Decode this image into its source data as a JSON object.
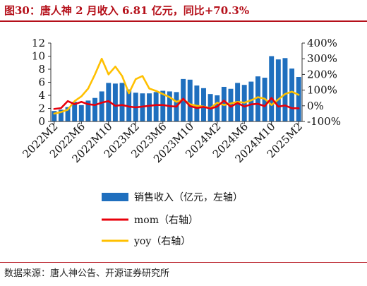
{
  "title": "图30：唐人神 2 月收入 6.81 亿元，同比+70.3%",
  "source": "数据来源：唐人神公告、开源证券研究所",
  "colors": {
    "bar": "#1f6fbe",
    "mom": "#e8000b",
    "yoy": "#ffc000",
    "title": "#b5101a"
  },
  "chart_data": {
    "type": "bar",
    "categories": [
      "2022M2",
      "2022M3",
      "2022M4",
      "2022M5",
      "2022M6",
      "2022M7",
      "2022M8",
      "2022M9",
      "2022M10",
      "2022M11",
      "2022M12",
      "2023M1",
      "2023M2",
      "2023M3",
      "2023M4",
      "2023M5",
      "2023M6",
      "2023M7",
      "2023M8",
      "2023M9",
      "2023M10",
      "2023M11",
      "2023M12",
      "2024M1",
      "2024M2",
      "2024M3",
      "2024M4",
      "2024M5",
      "2024M6",
      "2024M7",
      "2024M8",
      "2024M9",
      "2024M10",
      "2024M11",
      "2024M12",
      "2025M1",
      "2025M2"
    ],
    "x_tick_labels": [
      "2022M2",
      "2022M6",
      "2022M10",
      "2023M2",
      "2023M6",
      "2023M10",
      "2024M2",
      "2024M6",
      "2024M10",
      "2025M2"
    ],
    "series": [
      {
        "name": "销售收入（亿元，左轴）",
        "type": "bar",
        "axis": "left",
        "values": [
          1.6,
          1.8,
          2.2,
          3.0,
          2.5,
          3.2,
          3.6,
          4.6,
          5.9,
          5.8,
          5.9,
          4.9,
          4.4,
          4.3,
          4.3,
          4.5,
          4.7,
          4.6,
          4.5,
          6.5,
          6.4,
          5.5,
          5.1,
          4.2,
          4.0,
          5.3,
          5.0,
          5.9,
          5.6,
          6.1,
          6.9,
          6.7,
          10.0,
          9.5,
          9.7,
          8.1,
          6.81
        ]
      },
      {
        "name": "mom（右轴）",
        "type": "line",
        "axis": "right",
        "values": [
          -20,
          -15,
          30,
          10,
          25,
          10,
          5,
          20,
          30,
          0,
          5,
          -5,
          -10,
          -5,
          0,
          5,
          5,
          -2,
          -5,
          45,
          -2,
          -14,
          -7,
          -18,
          -5,
          33,
          -6,
          18,
          -5,
          9,
          13,
          -3,
          50,
          -5,
          2,
          -16,
          -16
        ]
      },
      {
        "name": "yoy（右轴）",
        "type": "line",
        "axis": "right",
        "values": [
          -50,
          -40,
          -25,
          30,
          60,
          110,
          200,
          300,
          200,
          250,
          190,
          80,
          170,
          190,
          110,
          95,
          75,
          55,
          25,
          40,
          10,
          0,
          -5,
          -15,
          20,
          5,
          15,
          25,
          20,
          35,
          55,
          45,
          5,
          40,
          75,
          90,
          70
        ]
      }
    ],
    "ylim_left": [
      0,
      12
    ],
    "yticks_left": [
      0,
      2,
      4,
      6,
      8,
      10,
      12
    ],
    "ylim_right": [
      -100,
      400
    ],
    "yticks_right": [
      "-100%",
      "0%",
      "100%",
      "200%",
      "300%",
      "400%"
    ],
    "legend_position": "bottom",
    "grid": false
  }
}
